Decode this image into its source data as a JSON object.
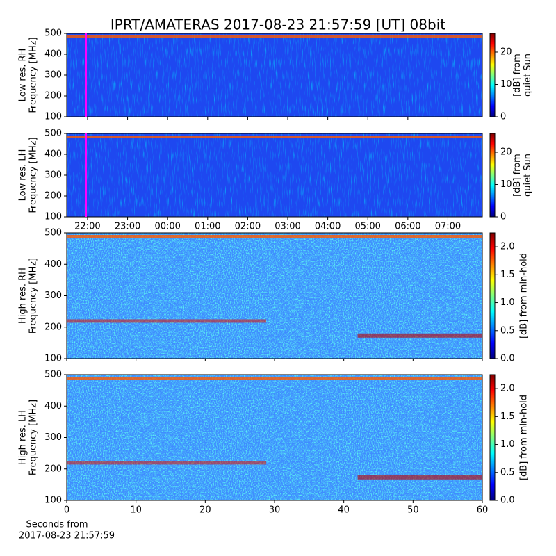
{
  "title": "IPRT/AMATERAS 2017-08-23 21:57:59 [UT]   08bit",
  "chart_data": [
    {
      "type": "heatmap",
      "ylabel": [
        "Low res. RH",
        "Frequency [MHz]"
      ],
      "xlim": [
        21.48,
        31.86
      ],
      "ylim": [
        100,
        500
      ],
      "yticks": [
        100,
        200,
        300,
        400,
        500
      ],
      "cursor_x": 21.966,
      "cursor_color": "#ff00ff",
      "colorbar_label": [
        "[dB] from",
        "quiet Sun"
      ],
      "clim": [
        0,
        25.8
      ],
      "cticks": [
        0,
        10,
        20
      ]
    },
    {
      "type": "heatmap",
      "ylabel": [
        "Low res. LH",
        "Frequency [MHz]"
      ],
      "xlim": [
        21.48,
        31.86
      ],
      "ylim": [
        100,
        500
      ],
      "yticks": [
        100,
        200,
        300,
        400,
        500
      ],
      "xticks": [
        {
          "value": 22,
          "label": "22:00"
        },
        {
          "value": 23,
          "label": "23:00"
        },
        {
          "value": 24,
          "label": "00:00"
        },
        {
          "value": 25,
          "label": "01:00"
        },
        {
          "value": 26,
          "label": "02:00"
        },
        {
          "value": 27,
          "label": "03:00"
        },
        {
          "value": 28,
          "label": "04:00"
        },
        {
          "value": 29,
          "label": "05:00"
        },
        {
          "value": 30,
          "label": "06:00"
        },
        {
          "value": 31,
          "label": "07:00"
        }
      ],
      "cursor_x": 21.966,
      "cursor_color": "#ff00ff",
      "colorbar_label": [
        "[dB] from",
        "quiet Sun"
      ],
      "clim": [
        0,
        25.8
      ],
      "cticks": [
        0,
        10,
        20
      ]
    },
    {
      "type": "heatmap",
      "ylabel": [
        "High res. RH",
        "Frequency [MHz]"
      ],
      "xlim": [
        0,
        60
      ],
      "ylim": [
        100,
        500
      ],
      "yticks": [
        100,
        200,
        300,
        400,
        500
      ],
      "colorbar_label": [
        "[dB] from min-hold"
      ],
      "clim": [
        0,
        2.25
      ],
      "cticks": [
        {
          "value": 0,
          "label": "0.0"
        },
        0.5,
        {
          "value": 1,
          "label": "1.0"
        },
        1.5,
        {
          "value": 2,
          "label": "2.0"
        }
      ]
    },
    {
      "type": "heatmap",
      "ylabel": [
        "High res. LH",
        "Frequency [MHz]"
      ],
      "xlim": [
        0,
        60
      ],
      "ylim": [
        100,
        500
      ],
      "yticks": [
        100,
        200,
        300,
        400,
        500
      ],
      "xticks": [
        0,
        10,
        20,
        30,
        40,
        50,
        60
      ],
      "xlabel": [
        "Seconds from",
        "2017-08-23 21:57:59"
      ],
      "colorbar_label": [
        "[dB] from min-hold"
      ],
      "clim": [
        0,
        2.25
      ],
      "cticks": [
        {
          "value": 0,
          "label": "0.0"
        },
        0.5,
        {
          "value": 1,
          "label": "1.0"
        },
        1.5,
        {
          "value": 2,
          "label": "2.0"
        }
      ]
    }
  ]
}
